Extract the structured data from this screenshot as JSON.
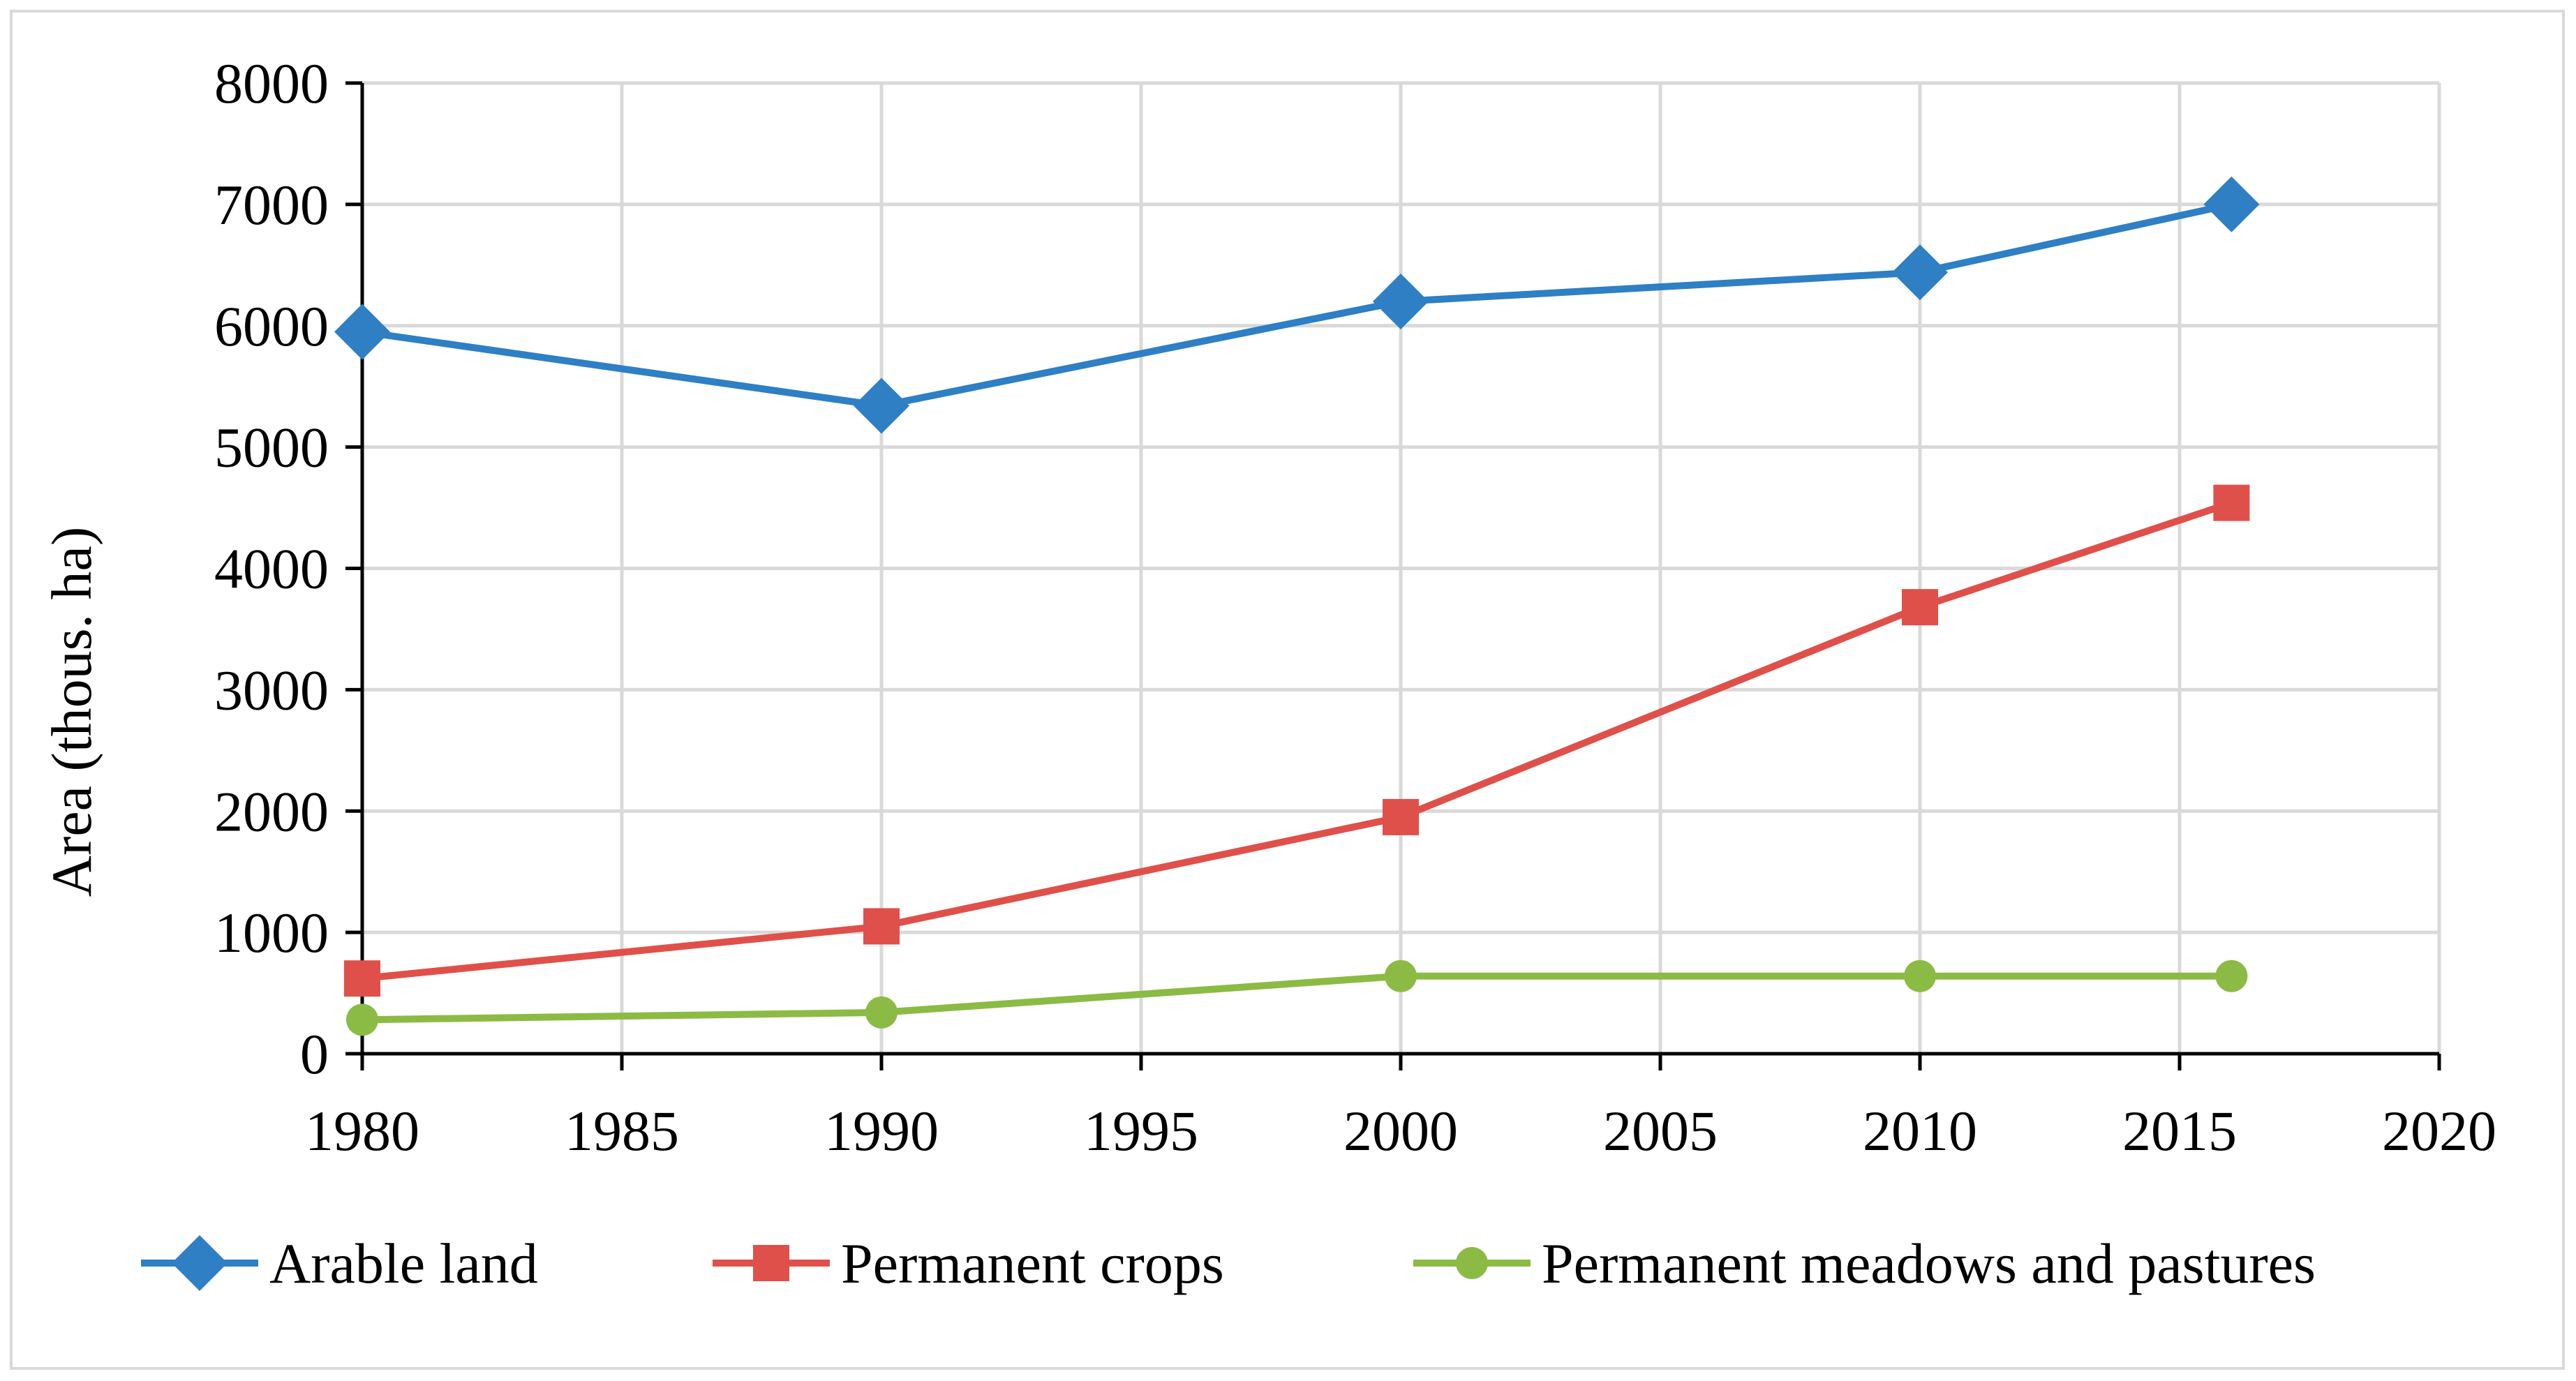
{
  "chart_data": {
    "type": "line",
    "title": "",
    "xlabel": "",
    "ylabel": "Area (thous. ha)",
    "xlim": [
      1980,
      2020
    ],
    "ylim": [
      0,
      8000
    ],
    "xticks": [
      1980,
      1985,
      1990,
      1995,
      2000,
      2005,
      2010,
      2015,
      2020
    ],
    "yticks": [
      0,
      1000,
      2000,
      3000,
      4000,
      5000,
      6000,
      7000,
      8000
    ],
    "grid": true,
    "legend_position": "bottom",
    "series": [
      {
        "name": "Arable land",
        "color": "#2e7fc4",
        "marker": "diamond",
        "x": [
          1980,
          1990,
          2000,
          2010,
          2016
        ],
        "y": [
          5950,
          5340,
          6200,
          6440,
          7000
        ]
      },
      {
        "name": "Permanent crops",
        "color": "#e0504a",
        "marker": "square",
        "x": [
          1980,
          1990,
          2000,
          2010,
          2016
        ],
        "y": [
          620,
          1050,
          1950,
          3680,
          4540
        ]
      },
      {
        "name": "Permanent meadows and pastures",
        "color": "#8bbb44",
        "marker": "circle",
        "x": [
          1980,
          1990,
          2000,
          2010,
          2016
        ],
        "y": [
          280,
          340,
          640,
          640,
          640
        ]
      }
    ]
  }
}
